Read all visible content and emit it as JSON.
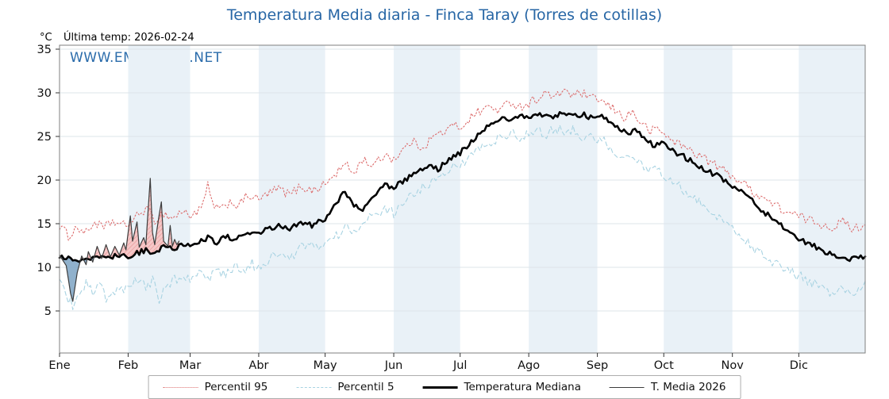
{
  "chart": {
    "title": "Temperatura Media diaria - Finca Taray (Torres de cotillas)",
    "unit_label": "°C",
    "last_temp_label": "Última temp: 2026-02-24",
    "watermark": "WWW.EMBALSES.NET",
    "title_color": "#2766a5"
  },
  "chart_data": {
    "type": "line",
    "title": "Temperatura Media diaria - Finca Taray (Torres de cotillas)",
    "ylabel": "°C",
    "ylim": [
      0.2,
      35.5
    ],
    "yticks": [
      5,
      10,
      15,
      20,
      25,
      30,
      35
    ],
    "x_axis": {
      "unit": "day_of_year",
      "range": [
        1,
        365
      ]
    },
    "month_labels": [
      "Ene",
      "Feb",
      "Mar",
      "Abr",
      "May",
      "Jun",
      "Jul",
      "Ago",
      "Sep",
      "Oct",
      "Nov",
      "Dic"
    ],
    "month_start_days": [
      1,
      32,
      60,
      91,
      121,
      152,
      182,
      213,
      244,
      274,
      305,
      335
    ],
    "plot": {
      "band_color": "#e9f1f7",
      "grid_color": "#dde4ea",
      "border_color": "#7f7f7f"
    },
    "legend_position": "bottom",
    "legend": [
      "Percentil 95",
      "Percentil 5",
      "Temperatura Mediana",
      "T. Media 2026"
    ],
    "fills": {
      "upper": "T. Media 2026",
      "lower": "Temperatura Mediana",
      "above_color": "#e89090",
      "below_color": "#84a9c7"
    },
    "series": [
      {
        "name": "Percentil 95",
        "style": "dotted",
        "color": "#dc6b6b",
        "width": 1.1,
        "jitter": 0.55,
        "anchors": [
          [
            1,
            14.8
          ],
          [
            5,
            13.6
          ],
          [
            9,
            14.6
          ],
          [
            13,
            13.9
          ],
          [
            17,
            15.2
          ],
          [
            21,
            14.4
          ],
          [
            25,
            15.3
          ],
          [
            29,
            14.7
          ],
          [
            32,
            15.0
          ],
          [
            36,
            15.8
          ],
          [
            40,
            16.8
          ],
          [
            44,
            15.4
          ],
          [
            48,
            16.2
          ],
          [
            52,
            15.6
          ],
          [
            56,
            16.4
          ],
          [
            60,
            16.0
          ],
          [
            65,
            16.6
          ],
          [
            68,
            19.3
          ],
          [
            70,
            17.3
          ],
          [
            74,
            16.5
          ],
          [
            78,
            17.6
          ],
          [
            82,
            17.0
          ],
          [
            86,
            18.3
          ],
          [
            91,
            17.7
          ],
          [
            95,
            18.4
          ],
          [
            100,
            19.0
          ],
          [
            105,
            18.3
          ],
          [
            110,
            19.3
          ],
          [
            115,
            18.8
          ],
          [
            121,
            19.5
          ],
          [
            125,
            20.5
          ],
          [
            130,
            21.8
          ],
          [
            134,
            20.8
          ],
          [
            138,
            22.4
          ],
          [
            143,
            21.6
          ],
          [
            148,
            23.0
          ],
          [
            152,
            22.4
          ],
          [
            156,
            23.4
          ],
          [
            160,
            24.4
          ],
          [
            165,
            23.8
          ],
          [
            170,
            25.0
          ],
          [
            175,
            25.6
          ],
          [
            180,
            26.3
          ],
          [
            182,
            26.0
          ],
          [
            186,
            27.0
          ],
          [
            190,
            27.8
          ],
          [
            195,
            28.4
          ],
          [
            200,
            28.0
          ],
          [
            205,
            29.0
          ],
          [
            209,
            28.4
          ],
          [
            213,
            28.8
          ],
          [
            217,
            29.4
          ],
          [
            221,
            30.0
          ],
          [
            225,
            29.3
          ],
          [
            229,
            30.5
          ],
          [
            233,
            29.6
          ],
          [
            237,
            30.0
          ],
          [
            241,
            29.2
          ],
          [
            244,
            29.4
          ],
          [
            248,
            28.6
          ],
          [
            252,
            28.0
          ],
          [
            256,
            27.2
          ],
          [
            260,
            27.8
          ],
          [
            264,
            26.4
          ],
          [
            268,
            25.6
          ],
          [
            272,
            25.9
          ],
          [
            274,
            25.2
          ],
          [
            278,
            24.6
          ],
          [
            283,
            23.8
          ],
          [
            288,
            23.2
          ],
          [
            293,
            22.4
          ],
          [
            298,
            21.6
          ],
          [
            303,
            20.8
          ],
          [
            305,
            20.5
          ],
          [
            310,
            19.6
          ],
          [
            315,
            18.6
          ],
          [
            320,
            17.8
          ],
          [
            325,
            17.0
          ],
          [
            330,
            16.3
          ],
          [
            335,
            15.8
          ],
          [
            340,
            15.4
          ],
          [
            345,
            15.0
          ],
          [
            350,
            14.6
          ],
          [
            355,
            15.2
          ],
          [
            360,
            14.4
          ],
          [
            365,
            14.9
          ]
        ]
      },
      {
        "name": "Percentil 5",
        "style": "dashed",
        "color": "#a8d3e2",
        "width": 1.1,
        "jitter": 0.6,
        "anchors": [
          [
            1,
            8.2
          ],
          [
            4,
            6.8
          ],
          [
            7,
            5.6
          ],
          [
            10,
            7.4
          ],
          [
            13,
            8.2
          ],
          [
            16,
            7.0
          ],
          [
            19,
            8.0
          ],
          [
            22,
            6.6
          ],
          [
            25,
            7.6
          ],
          [
            28,
            7.0
          ],
          [
            32,
            7.8
          ],
          [
            36,
            8.6
          ],
          [
            40,
            7.6
          ],
          [
            44,
            8.8
          ],
          [
            46,
            6.4
          ],
          [
            50,
            8.0
          ],
          [
            52,
            8.4
          ],
          [
            56,
            9.0
          ],
          [
            60,
            8.6
          ],
          [
            64,
            9.2
          ],
          [
            68,
            8.4
          ],
          [
            72,
            9.6
          ],
          [
            76,
            9.0
          ],
          [
            80,
            10.2
          ],
          [
            84,
            9.4
          ],
          [
            88,
            10.4
          ],
          [
            91,
            9.8
          ],
          [
            95,
            10.8
          ],
          [
            100,
            11.6
          ],
          [
            105,
            11.0
          ],
          [
            110,
            12.2
          ],
          [
            115,
            12.8
          ],
          [
            121,
            12.4
          ],
          [
            125,
            13.4
          ],
          [
            130,
            14.6
          ],
          [
            134,
            13.8
          ],
          [
            138,
            15.2
          ],
          [
            143,
            16.0
          ],
          [
            148,
            16.8
          ],
          [
            152,
            16.2
          ],
          [
            156,
            17.4
          ],
          [
            160,
            18.4
          ],
          [
            165,
            19.2
          ],
          [
            170,
            20.0
          ],
          [
            175,
            21.0
          ],
          [
            180,
            21.8
          ],
          [
            182,
            21.4
          ],
          [
            186,
            22.6
          ],
          [
            190,
            23.4
          ],
          [
            195,
            24.2
          ],
          [
            200,
            24.8
          ],
          [
            205,
            25.4
          ],
          [
            209,
            24.8
          ],
          [
            213,
            25.2
          ],
          [
            217,
            25.8
          ],
          [
            221,
            25.2
          ],
          [
            225,
            26.0
          ],
          [
            229,
            25.4
          ],
          [
            233,
            25.8
          ],
          [
            237,
            25.0
          ],
          [
            241,
            25.4
          ],
          [
            244,
            24.8
          ],
          [
            248,
            24.2
          ],
          [
            252,
            23.4
          ],
          [
            256,
            22.6
          ],
          [
            260,
            23.0
          ],
          [
            264,
            21.8
          ],
          [
            268,
            21.0
          ],
          [
            272,
            21.4
          ],
          [
            274,
            20.6
          ],
          [
            278,
            19.8
          ],
          [
            283,
            18.8
          ],
          [
            288,
            18.0
          ],
          [
            293,
            16.8
          ],
          [
            298,
            15.8
          ],
          [
            303,
            14.8
          ],
          [
            305,
            14.4
          ],
          [
            310,
            13.4
          ],
          [
            315,
            12.2
          ],
          [
            320,
            11.2
          ],
          [
            325,
            10.4
          ],
          [
            330,
            9.6
          ],
          [
            335,
            9.0
          ],
          [
            340,
            8.4
          ],
          [
            345,
            7.6
          ],
          [
            350,
            6.8
          ],
          [
            355,
            7.8
          ],
          [
            360,
            6.4
          ],
          [
            365,
            8.3
          ]
        ]
      },
      {
        "name": "Temperatura Mediana",
        "style": "solid",
        "color": "#000000",
        "width": 2.6,
        "jitter": 0.3,
        "anchors": [
          [
            1,
            11.3
          ],
          [
            5,
            11.0
          ],
          [
            8,
            10.7
          ],
          [
            12,
            11.1
          ],
          [
            15,
            11.0
          ],
          [
            19,
            11.3
          ],
          [
            23,
            11.0
          ],
          [
            27,
            11.4
          ],
          [
            32,
            11.3
          ],
          [
            36,
            11.6
          ],
          [
            40,
            12.0
          ],
          [
            44,
            11.6
          ],
          [
            48,
            12.4
          ],
          [
            52,
            12.1
          ],
          [
            56,
            12.5
          ],
          [
            60,
            12.4
          ],
          [
            64,
            12.9
          ],
          [
            68,
            13.4
          ],
          [
            72,
            12.9
          ],
          [
            76,
            13.5
          ],
          [
            80,
            13.3
          ],
          [
            84,
            13.9
          ],
          [
            88,
            13.7
          ],
          [
            91,
            14.0
          ],
          [
            95,
            14.3
          ],
          [
            100,
            14.7
          ],
          [
            105,
            14.5
          ],
          [
            110,
            15.2
          ],
          [
            115,
            14.8
          ],
          [
            121,
            15.6
          ],
          [
            126,
            17.3
          ],
          [
            130,
            18.7
          ],
          [
            134,
            17.2
          ],
          [
            138,
            16.5
          ],
          [
            143,
            18.2
          ],
          [
            148,
            19.4
          ],
          [
            152,
            19.1
          ],
          [
            158,
            20.2
          ],
          [
            163,
            21.1
          ],
          [
            168,
            21.6
          ],
          [
            172,
            21.2
          ],
          [
            177,
            22.4
          ],
          [
            182,
            23.1
          ],
          [
            187,
            24.4
          ],
          [
            192,
            25.6
          ],
          [
            196,
            26.6
          ],
          [
            200,
            27.1
          ],
          [
            205,
            26.8
          ],
          [
            210,
            27.3
          ],
          [
            213,
            27.0
          ],
          [
            218,
            27.5
          ],
          [
            223,
            27.2
          ],
          [
            228,
            27.6
          ],
          [
            233,
            27.3
          ],
          [
            238,
            27.5
          ],
          [
            242,
            27.0
          ],
          [
            246,
            27.2
          ],
          [
            250,
            26.6
          ],
          [
            254,
            26.0
          ],
          [
            258,
            25.3
          ],
          [
            262,
            25.8
          ],
          [
            266,
            24.6
          ],
          [
            270,
            23.9
          ],
          [
            274,
            24.2
          ],
          [
            278,
            23.3
          ],
          [
            283,
            22.7
          ],
          [
            288,
            21.9
          ],
          [
            293,
            21.2
          ],
          [
            298,
            20.5
          ],
          [
            303,
            19.7
          ],
          [
            307,
            19.0
          ],
          [
            311,
            18.3
          ],
          [
            315,
            17.4
          ],
          [
            319,
            16.4
          ],
          [
            323,
            15.6
          ],
          [
            327,
            14.8
          ],
          [
            331,
            13.9
          ],
          [
            335,
            13.3
          ],
          [
            339,
            12.8
          ],
          [
            343,
            12.3
          ],
          [
            347,
            11.8
          ],
          [
            351,
            11.4
          ],
          [
            355,
            11.3
          ],
          [
            359,
            10.9
          ],
          [
            362,
            11.2
          ],
          [
            365,
            11.1
          ]
        ]
      },
      {
        "name": "T. Media 2026",
        "style": "solid",
        "color": "#3c3c3c",
        "width": 1.2,
        "jitter": 0,
        "ends_day": 55,
        "anchors": [
          [
            1,
            11.4
          ],
          [
            2,
            11.0
          ],
          [
            4,
            10.2
          ],
          [
            6,
            7.0
          ],
          [
            7,
            6.1
          ],
          [
            9,
            9.4
          ],
          [
            11,
            11.3
          ],
          [
            13,
            10.3
          ],
          [
            14,
            11.8
          ],
          [
            16,
            10.6
          ],
          [
            18,
            12.4
          ],
          [
            20,
            11.0
          ],
          [
            22,
            12.6
          ],
          [
            24,
            11.2
          ],
          [
            26,
            12.4
          ],
          [
            28,
            11.4
          ],
          [
            30,
            12.8
          ],
          [
            31,
            12.0
          ],
          [
            33,
            15.9
          ],
          [
            34,
            13.0
          ],
          [
            36,
            15.2
          ],
          [
            37,
            12.3
          ],
          [
            39,
            13.4
          ],
          [
            40,
            12.6
          ],
          [
            42,
            20.2
          ],
          [
            43,
            14.0
          ],
          [
            44,
            12.6
          ],
          [
            46,
            16.0
          ],
          [
            47,
            17.5
          ],
          [
            48,
            13.0
          ],
          [
            50,
            12.4
          ],
          [
            51,
            14.8
          ],
          [
            52,
            12.4
          ],
          [
            53,
            13.2
          ],
          [
            54,
            12.6
          ],
          [
            55,
            13.0
          ]
        ]
      }
    ]
  }
}
